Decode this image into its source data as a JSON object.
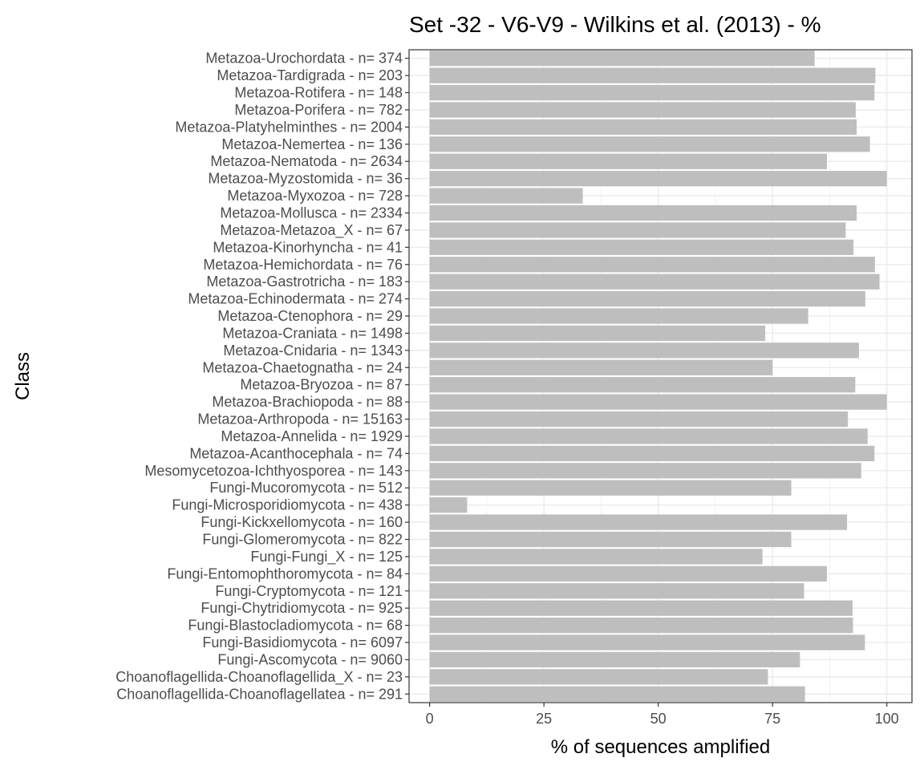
{
  "chart_data": {
    "type": "bar",
    "orientation": "horizontal",
    "title": "Set -32 - V6-V9 - Wilkins et al. (2013) - %",
    "xlabel": "% of sequences amplified",
    "ylabel": "Class",
    "xlim": [
      0,
      100
    ],
    "xticks": [
      "0",
      "25",
      "50",
      "75",
      "100"
    ],
    "grid": true,
    "bar_color": "#bebebe",
    "categories": [
      "Choanoflagellida-Choanoflagellatea - n= 291",
      "Choanoflagellida-Choanoflagellida_X - n= 23",
      "Fungi-Ascomycota - n= 9060",
      "Fungi-Basidiomycota - n= 6097",
      "Fungi-Blastocladiomycota - n= 68",
      "Fungi-Chytridiomycota - n= 925",
      "Fungi-Cryptomycota - n= 121",
      "Fungi-Entomophthoromycota - n= 84",
      "Fungi-Fungi_X - n= 125",
      "Fungi-Glomeromycota - n= 822",
      "Fungi-Kickxellomycota - n= 160",
      "Fungi-Microsporidiomycota - n= 438",
      "Fungi-Mucoromycota - n= 512",
      "Mesomycetozoa-Ichthyosporea - n= 143",
      "Metazoa-Acanthocephala - n= 74",
      "Metazoa-Annelida - n= 1929",
      "Metazoa-Arthropoda - n= 15163",
      "Metazoa-Brachiopoda - n= 88",
      "Metazoa-Bryozoa - n= 87",
      "Metazoa-Chaetognatha - n= 24",
      "Metazoa-Cnidaria - n= 1343",
      "Metazoa-Craniata - n= 1498",
      "Metazoa-Ctenophora - n= 29",
      "Metazoa-Echinodermata - n= 274",
      "Metazoa-Gastrotricha - n= 183",
      "Metazoa-Hemichordata - n= 76",
      "Metazoa-Kinorhyncha - n= 41",
      "Metazoa-Metazoa_X - n= 67",
      "Metazoa-Mollusca - n= 2334",
      "Metazoa-Myxozoa - n= 728",
      "Metazoa-Myzostomida - n= 36",
      "Metazoa-Nematoda - n= 2634",
      "Metazoa-Nemertea - n= 136",
      "Metazoa-Platyhelminthes - n= 2004",
      "Metazoa-Porifera - n= 782",
      "Metazoa-Rotifera - n= 148",
      "Metazoa-Tardigrada - n= 203",
      "Metazoa-Urochordata - n= 374"
    ],
    "values": [
      82.1,
      74.0,
      81.0,
      95.2,
      92.6,
      92.5,
      81.9,
      86.9,
      72.8,
      79.1,
      91.3,
      8.2,
      79.1,
      94.4,
      97.3,
      95.8,
      91.5,
      100.0,
      93.1,
      75.0,
      93.9,
      73.4,
      82.8,
      95.3,
      98.4,
      97.4,
      92.7,
      91.0,
      93.4,
      33.5,
      100.0,
      86.9,
      96.3,
      93.4,
      93.2,
      97.3,
      97.5,
      84.2
    ]
  }
}
